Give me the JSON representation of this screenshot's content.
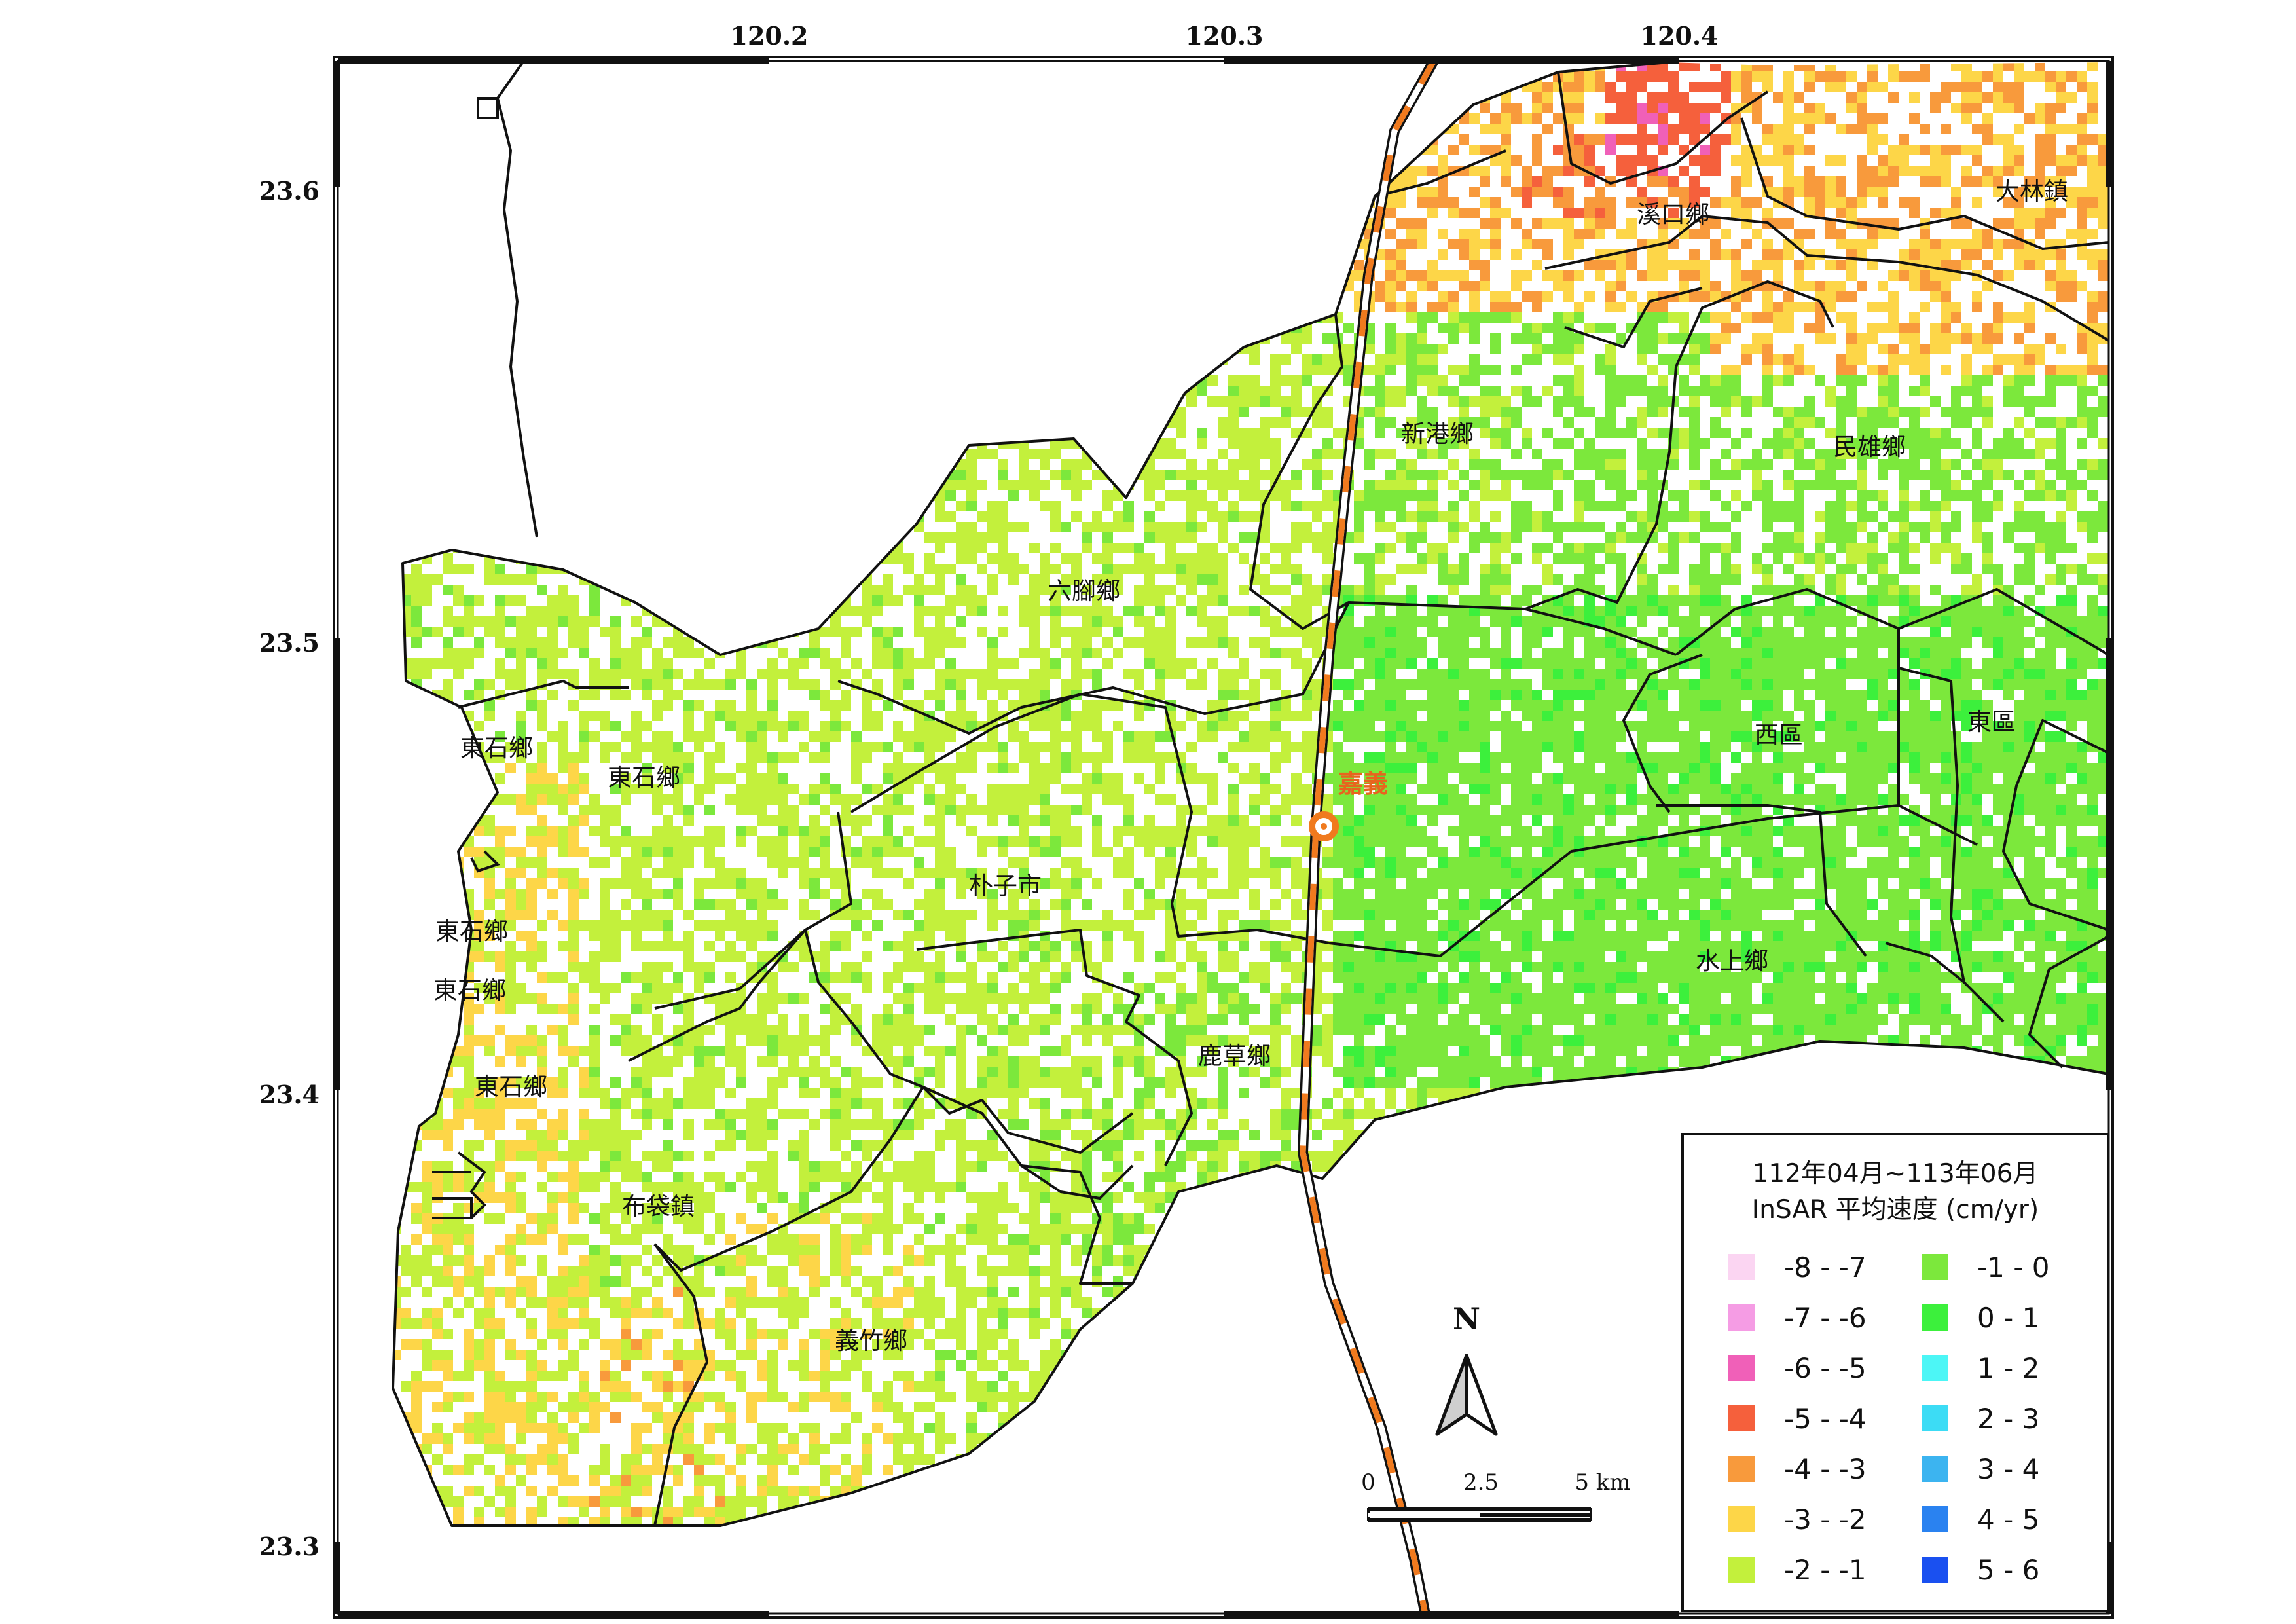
{
  "axes": {
    "x_ticks": [
      "120.2",
      "120.3",
      "120.4"
    ],
    "y_ticks": [
      "23.6",
      "23.5",
      "23.4",
      "23.3"
    ]
  },
  "places": [
    {
      "name": "溪口鄉"
    },
    {
      "name": "大林鎮"
    },
    {
      "name": "新港鄉"
    },
    {
      "name": "民雄鄉"
    },
    {
      "name": "六腳鄉"
    },
    {
      "name": "東石鄉"
    },
    {
      "name": "東石鄉"
    },
    {
      "name": "東石鄉"
    },
    {
      "name": "東石鄉"
    },
    {
      "name": "東石鄉"
    },
    {
      "name": "朴子市"
    },
    {
      "name": "西區"
    },
    {
      "name": "東區"
    },
    {
      "name": "水上鄉"
    },
    {
      "name": "鹿草鄉"
    },
    {
      "name": "布袋鎮"
    },
    {
      "name": "義竹鄉"
    }
  ],
  "city": {
    "name": "嘉義"
  },
  "legend": {
    "title_line1": "112年04月~113年06月",
    "title_line2": "InSAR 平均速度 (cm/yr)",
    "left_items": [
      {
        "label": "-8 - -7",
        "color": "#fbd5f2"
      },
      {
        "label": "-7 - -6",
        "color": "#f59ce4"
      },
      {
        "label": "-6 - -5",
        "color": "#f060b8"
      },
      {
        "label": "-5 - -4",
        "color": "#f5603c"
      },
      {
        "label": "-4 - -3",
        "color": "#f89a3c"
      },
      {
        "label": "-3 - -2",
        "color": "#fdd648"
      },
      {
        "label": "-2 - -1",
        "color": "#c3f03c"
      }
    ],
    "right_items": [
      {
        "label": "-1 - 0",
        "color": "#7ce83c"
      },
      {
        "label": "0 - 1",
        "color": "#3cf03c"
      },
      {
        "label": "1 - 2",
        "color": "#4cf6f6"
      },
      {
        "label": "2 - 3",
        "color": "#3cdcf5"
      },
      {
        "label": "3 - 4",
        "color": "#3cb4f0"
      },
      {
        "label": "4 - 5",
        "color": "#2a82f0"
      },
      {
        "label": "5 - 6",
        "color": "#1a50f0"
      }
    ]
  },
  "north_arrow": {
    "label": "N"
  },
  "scale_bar": {
    "labels": [
      "0",
      "2.5",
      "5 km"
    ]
  }
}
